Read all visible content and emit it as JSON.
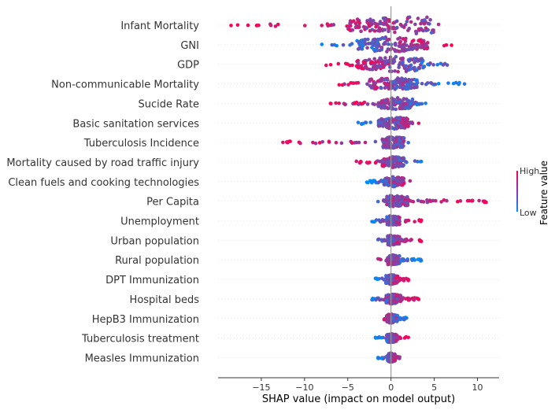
{
  "chart_data": {
    "type": "scatter",
    "subtype": "shap-beeswarm",
    "title": "",
    "xlabel": "SHAP value (impact on model output)",
    "ylabel": "",
    "xlim": [
      -20,
      12.5
    ],
    "xticks": [
      -15,
      -10,
      -5,
      0,
      5,
      10
    ],
    "xtick_labels": [
      "−15",
      "−10",
      "−5",
      "0",
      "5",
      "10"
    ],
    "grid": false,
    "zero_line": true,
    "colorbar": {
      "title": "Feature value",
      "high_label": "High",
      "low_label": "Low",
      "high_color": "#ff0052",
      "low_color": "#008bfb"
    },
    "features": [
      {
        "name": "Infant Mortality",
        "min": -18.5,
        "max": 5.5,
        "dense_min": -5,
        "dense_max": 5,
        "peak": 4.5,
        "width": 0.9,
        "high_side": "neg"
      },
      {
        "name": "GNI",
        "min": -8,
        "max": 7,
        "dense_min": -4,
        "dense_max": 4.5,
        "peak": 0,
        "width": 0.8,
        "high_side": "pos"
      },
      {
        "name": "GDP",
        "min": -7.5,
        "max": 6.5,
        "dense_min": -4,
        "dense_max": 4,
        "peak": 1,
        "width": 0.8,
        "high_side": "neg"
      },
      {
        "name": "Non-communicable Mortality",
        "min": -6,
        "max": 8.5,
        "dense_min": -2.5,
        "dense_max": 3,
        "peak": 0,
        "width": 0.6,
        "high_side": "neg"
      },
      {
        "name": "Sucide Rate",
        "min": -7,
        "max": 4,
        "dense_min": -1.5,
        "dense_max": 2.5,
        "peak": 0.5,
        "width": 0.55,
        "high_side": "neg"
      },
      {
        "name": "Basic sanitation services",
        "min": -3.8,
        "max": 3.2,
        "dense_min": -1.5,
        "dense_max": 2,
        "peak": 0.5,
        "width": 0.6,
        "high_side": "pos"
      },
      {
        "name": "Tuberculosis Incidence",
        "min": -12.5,
        "max": 2,
        "dense_min": -1,
        "dense_max": 1.5,
        "peak": 0.3,
        "width": 0.5,
        "high_side": "neg"
      },
      {
        "name": "Mortality caused by road traffic injury",
        "min": -4,
        "max": 3.5,
        "dense_min": -1,
        "dense_max": 1.5,
        "peak": 0.3,
        "width": 0.5,
        "high_side": "neg"
      },
      {
        "name": "Clean fuels and cooking technologies",
        "min": -2.8,
        "max": 2.2,
        "dense_min": -0.8,
        "dense_max": 1.5,
        "peak": 0.3,
        "width": 0.45,
        "high_side": "pos"
      },
      {
        "name": "Per Capita",
        "min": -1.5,
        "max": 11,
        "dense_min": -0.5,
        "dense_max": 2,
        "peak": 0,
        "width": 0.5,
        "high_side": "pos"
      },
      {
        "name": "Unemployment",
        "min": -2.2,
        "max": 3.5,
        "dense_min": -0.5,
        "dense_max": 1,
        "peak": 0,
        "width": 0.45,
        "high_side": "pos"
      },
      {
        "name": "Urban population",
        "min": -1.5,
        "max": 3.5,
        "dense_min": -0.4,
        "dense_max": 1,
        "peak": 0,
        "width": 0.45,
        "high_side": "pos"
      },
      {
        "name": "Rural population",
        "min": -1.5,
        "max": 3.5,
        "dense_min": -0.4,
        "dense_max": 1,
        "peak": 0,
        "width": 0.45,
        "high_side": "neg"
      },
      {
        "name": "DPT Immunization",
        "min": -1.8,
        "max": 2,
        "dense_min": -0.6,
        "dense_max": 0.8,
        "peak": 0,
        "width": 0.45,
        "high_side": "pos"
      },
      {
        "name": "Hospital beds",
        "min": -2.2,
        "max": 3.2,
        "dense_min": -0.6,
        "dense_max": 1.2,
        "peak": 0,
        "width": 0.45,
        "high_side": "pos"
      },
      {
        "name": "HepB3 Immunization",
        "min": -0.8,
        "max": 1.8,
        "dense_min": -0.5,
        "dense_max": 0.8,
        "peak": 0,
        "width": 0.4,
        "high_side": "neg"
      },
      {
        "name": "Tuberculosis treatment",
        "min": -1.8,
        "max": 2,
        "dense_min": -0.5,
        "dense_max": 0.8,
        "peak": 0,
        "width": 0.4,
        "high_side": "pos"
      },
      {
        "name": "Measles Immunization",
        "min": -1.5,
        "max": 1,
        "dense_min": -0.4,
        "dense_max": 0.5,
        "peak": 0,
        "width": 0.4,
        "high_side": "pos"
      }
    ]
  }
}
